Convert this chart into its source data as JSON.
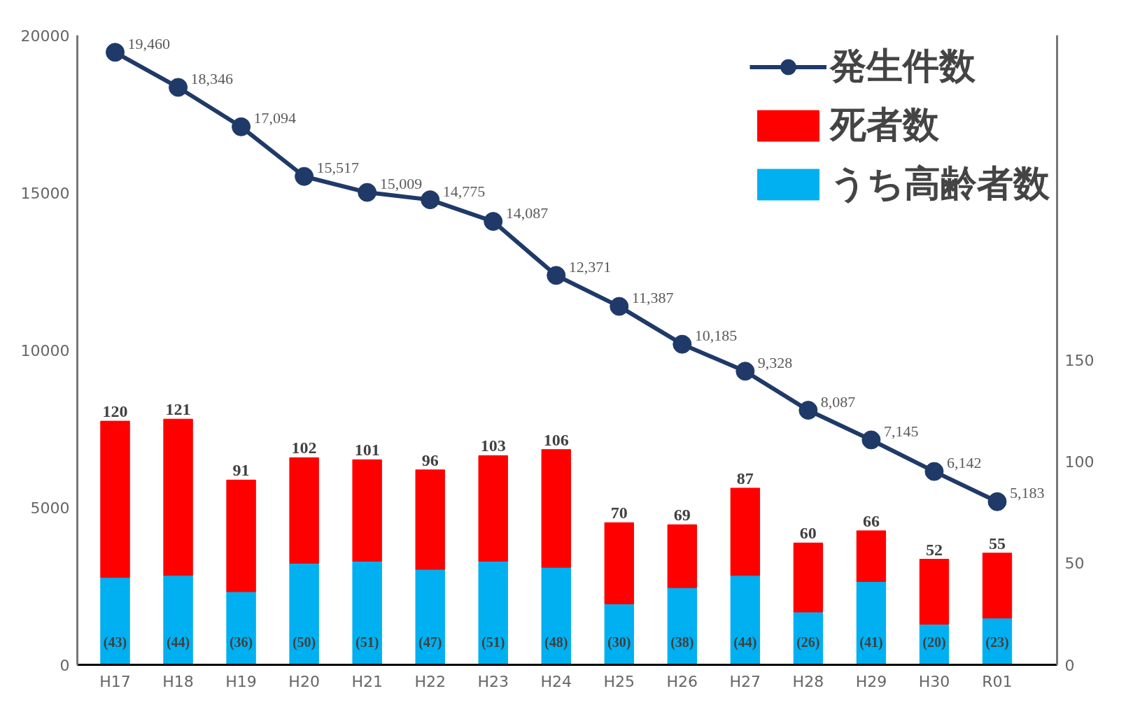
{
  "chart_data": {
    "type": "bar",
    "stacked": true,
    "categories": [
      "H17",
      "H18",
      "H19",
      "H20",
      "H21",
      "H22",
      "H23",
      "H24",
      "H25",
      "H26",
      "H27",
      "H28",
      "H29",
      "H30",
      "R01"
    ],
    "ylim": [
      0,
      20000
    ],
    "yticks": [
      0,
      5000,
      10000,
      15000,
      20000
    ],
    "y2lim": [
      0,
      310
    ],
    "y2ticks": [
      0,
      50,
      100,
      150
    ],
    "grid": false,
    "legend": "top right",
    "series": [
      {
        "name": "発生件数",
        "type": "line",
        "marker": "circle",
        "color": "#1f3a68",
        "values": [
          19460,
          18346,
          17094,
          15517,
          15009,
          14775,
          14087,
          12371,
          11387,
          10185,
          9328,
          8087,
          7145,
          6142,
          5183
        ],
        "value_labels": [
          "19,460",
          "18,346",
          "17,094",
          "15,517",
          "15,009",
          "14,775",
          "14,087",
          "12,371",
          "11,387",
          "10,185",
          "9,328",
          "8,087",
          "7,145",
          "6,142",
          "5,183"
        ]
      },
      {
        "name": "うち高齢者数",
        "axis": "y2",
        "color": "#00b0f0",
        "values": [
          43,
          44,
          36,
          50,
          51,
          47,
          51,
          48,
          30,
          38,
          44,
          26,
          41,
          20,
          23
        ],
        "value_labels": [
          "(43)",
          "(44)",
          "(36)",
          "(50)",
          "(51)",
          "(47)",
          "(51)",
          "(48)",
          "(30)",
          "(38)",
          "(44)",
          "(26)",
          "(41)",
          "(20)",
          "(23)"
        ]
      },
      {
        "name": "死者数",
        "axis": "y2",
        "color": "#ff0000",
        "values": [
          77,
          77,
          55,
          52,
          50,
          49,
          52,
          58,
          40,
          31,
          43,
          34,
          25,
          32,
          32
        ]
      }
    ],
    "totals": [
      "120",
      "121",
      "91",
      "102",
      "101",
      "96",
      "103",
      "106",
      "70",
      "69",
      "87",
      "60",
      "66",
      "52",
      "55"
    ]
  }
}
